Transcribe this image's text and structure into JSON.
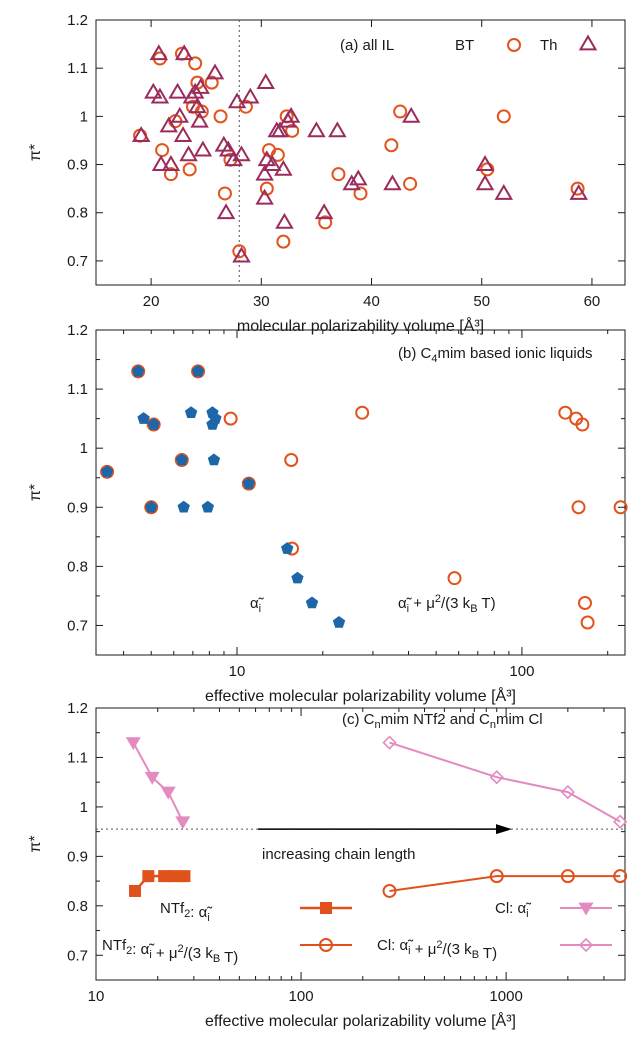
{
  "colors": {
    "orange": "#e2531d",
    "purple": "#9a2b5c",
    "blue": "#1d66a8",
    "pink": "#e38ac1",
    "nt_orange": "#e0521c",
    "axis": "#1a1a1a"
  },
  "chart_data": [
    {
      "type": "scatter",
      "panel": "a",
      "annotation": "(a) all IL",
      "xlabel": "molecular polarizability volume  [Å³]",
      "ylabel": "π*",
      "xlim": [
        15,
        63
      ],
      "ylim": [
        0.65,
        1.2
      ],
      "xscale": "linear",
      "xticks": [
        20,
        30,
        40,
        50,
        60
      ],
      "yticks": [
        0.7,
        0.8,
        0.9,
        1,
        1.1,
        1.2
      ],
      "yticklabels": [
        "0.7",
        "0.8",
        "0.9",
        "1",
        "1.1",
        "1.2"
      ],
      "vline_x": 28,
      "series": [
        {
          "name": "BT",
          "marker": "circle-open",
          "points": [
            [
              19.0,
              0.96
            ],
            [
              20.8,
              1.12
            ],
            [
              21.0,
              0.93
            ],
            [
              21.8,
              0.88
            ],
            [
              22.2,
              0.99
            ],
            [
              22.8,
              1.13
            ],
            [
              23.5,
              0.89
            ],
            [
              23.8,
              1.02
            ],
            [
              24.0,
              1.11
            ],
            [
              24.2,
              1.07
            ],
            [
              24.6,
              1.01
            ],
            [
              25.5,
              1.07
            ],
            [
              26.3,
              1.0
            ],
            [
              26.7,
              0.84
            ],
            [
              27.2,
              0.91
            ],
            [
              28.0,
              0.72
            ],
            [
              28.6,
              1.02
            ],
            [
              30.5,
              0.85
            ],
            [
              30.7,
              0.93
            ],
            [
              31.5,
              0.92
            ],
            [
              32.0,
              0.74
            ],
            [
              32.3,
              1.0
            ],
            [
              32.8,
              0.97
            ],
            [
              35.8,
              0.78
            ],
            [
              37.0,
              0.88
            ],
            [
              39.0,
              0.84
            ],
            [
              41.8,
              0.94
            ],
            [
              42.6,
              1.01
            ],
            [
              43.5,
              0.86
            ],
            [
              50.5,
              0.89
            ],
            [
              52.0,
              1.0
            ],
            [
              58.7,
              0.85
            ]
          ]
        },
        {
          "name": "Th",
          "marker": "triangle-open",
          "points": [
            [
              19.1,
              0.96
            ],
            [
              20.2,
              1.05
            ],
            [
              20.7,
              1.13
            ],
            [
              20.8,
              1.04
            ],
            [
              20.9,
              0.9
            ],
            [
              21.6,
              0.98
            ],
            [
              21.8,
              0.9
            ],
            [
              22.4,
              1.05
            ],
            [
              22.6,
              1.0
            ],
            [
              22.9,
              0.96
            ],
            [
              23.0,
              1.13
            ],
            [
              23.4,
              0.92
            ],
            [
              23.7,
              1.04
            ],
            [
              24.0,
              1.05
            ],
            [
              24.2,
              1.02
            ],
            [
              24.4,
              0.99
            ],
            [
              24.5,
              1.06
            ],
            [
              24.7,
              0.93
            ],
            [
              25.8,
              1.09
            ],
            [
              26.6,
              0.94
            ],
            [
              26.8,
              0.8
            ],
            [
              27.0,
              0.93
            ],
            [
              27.5,
              0.91
            ],
            [
              27.8,
              1.03
            ],
            [
              28.2,
              0.71
            ],
            [
              28.2,
              0.92
            ],
            [
              29.0,
              1.04
            ],
            [
              30.3,
              0.88
            ],
            [
              30.3,
              0.83
            ],
            [
              30.4,
              1.07
            ],
            [
              30.5,
              0.91
            ],
            [
              31.0,
              0.9
            ],
            [
              31.4,
              0.97
            ],
            [
              31.7,
              0.97
            ],
            [
              32.0,
              0.89
            ],
            [
              32.1,
              0.78
            ],
            [
              32.4,
              0.99
            ],
            [
              32.7,
              1.0
            ],
            [
              35.0,
              0.97
            ],
            [
              35.7,
              0.8
            ],
            [
              36.9,
              0.97
            ],
            [
              38.2,
              0.86
            ],
            [
              38.8,
              0.87
            ],
            [
              41.9,
              0.86
            ],
            [
              43.6,
              1.0
            ],
            [
              50.3,
              0.9
            ],
            [
              50.3,
              0.86
            ],
            [
              52.0,
              0.84
            ],
            [
              58.8,
              0.84
            ]
          ]
        }
      ]
    },
    {
      "type": "scatter",
      "panel": "b",
      "annotation": "(b) C4mim based ionic liquids",
      "annotation_parts": {
        "pre": "(b) C",
        "sub": "4",
        "post": "mim based ionic liquids"
      },
      "xlabel": "effective molecular polarizability volume [Å³]",
      "ylabel": "π*",
      "xlim": [
        3.2,
        230
      ],
      "ylim": [
        0.65,
        1.2
      ],
      "xscale": "log",
      "xticks": [
        10,
        100
      ],
      "xticklabels": [
        "10",
        "100"
      ],
      "yticks": [
        0.7,
        0.8,
        0.9,
        1,
        1.1,
        1.2
      ],
      "yticklabels": [
        "0.7",
        "0.8",
        "0.9",
        "1",
        "1.1",
        "1.2"
      ],
      "series": [
        {
          "name": "α̃ᵢ",
          "legend_text": "α̃ i",
          "marker": "pentagon-filled",
          "points": [
            [
              3.5,
              0.96
            ],
            [
              4.5,
              1.13
            ],
            [
              4.7,
              1.05
            ],
            [
              5.0,
              0.9
            ],
            [
              5.1,
              1.04
            ],
            [
              6.4,
              0.98
            ],
            [
              6.5,
              0.9
            ],
            [
              6.9,
              1.06
            ],
            [
              7.3,
              1.13
            ],
            [
              7.9,
              0.9
            ],
            [
              8.2,
              1.04
            ],
            [
              8.2,
              1.06
            ],
            [
              8.3,
              0.98
            ],
            [
              8.4,
              1.05
            ],
            [
              11.0,
              0.94
            ],
            [
              15.0,
              0.83
            ],
            [
              16.3,
              0.78
            ],
            [
              22.8,
              0.705
            ]
          ]
        },
        {
          "name": "α̃ᵢ + μ²/(3 k_B T)",
          "legend_text": "α̃ i + μ2/(3 kB T)",
          "marker": "circle-open",
          "points": [
            [
              3.5,
              0.96
            ],
            [
              4.5,
              1.13
            ],
            [
              5.0,
              0.9
            ],
            [
              5.1,
              1.04
            ],
            [
              6.4,
              0.98
            ],
            [
              7.3,
              1.13
            ],
            [
              9.5,
              1.05
            ],
            [
              11.0,
              0.94
            ],
            [
              15.5,
              0.98
            ],
            [
              15.6,
              0.83
            ],
            [
              27.5,
              1.06
            ],
            [
              58.0,
              0.78
            ],
            [
              142.0,
              1.06
            ],
            [
              155.0,
              1.05
            ],
            [
              158.0,
              0.9
            ],
            [
              163.0,
              1.04
            ],
            [
              170.0,
              0.705
            ],
            [
              222.0,
              0.9
            ]
          ]
        }
      ]
    },
    {
      "type": "line",
      "panel": "c",
      "annotation": "(c) CnmimNTf2 and CnmimCl",
      "annotation_parts": {
        "pre": "(c) C",
        "sub1": "n",
        "mid": "mim NTf2 and C",
        "sub2": "n",
        "post": "mim Cl"
      },
      "arrow_text": "increasing chain length",
      "hline_y": 0.955,
      "xlabel": "effective molecular polarizability volume [Å³]",
      "ylabel": "π*",
      "xlim": [
        10,
        3800
      ],
      "ylim": [
        0.65,
        1.2
      ],
      "xscale": "log",
      "xticks": [
        10,
        100,
        1000
      ],
      "xticklabels": [
        "10",
        "100",
        "1000"
      ],
      "yticks": [
        0.7,
        0.8,
        0.9,
        1,
        1.1,
        1.2
      ],
      "yticklabels": [
        "0.7",
        "0.8",
        "0.9",
        "1",
        "1.1",
        "1.2"
      ],
      "series": [
        {
          "name": "NTf2: α̃ᵢ",
          "legend_text": "NTf2: α̃ i",
          "marker": "square-filled",
          "points": [
            [
              15.5,
              0.83
            ],
            [
              18.0,
              0.86
            ],
            [
              21.5,
              0.86
            ],
            [
              24.0,
              0.86
            ],
            [
              27.0,
              0.86
            ]
          ]
        },
        {
          "name": "NTf2: α̃ᵢ + μ²/(3 k_B T)",
          "legend_text": "NTf2: α̃ i + μ2/(3 kB T)",
          "marker": "circle-open",
          "points": [
            [
              270,
              0.83
            ],
            [
              900,
              0.86
            ],
            [
              2000,
              0.86
            ],
            [
              3600,
              0.86
            ]
          ]
        },
        {
          "name": "Cl: α̃ᵢ",
          "legend_text": "Cl: α̃ i",
          "marker": "triangle-down-filled",
          "points": [
            [
              15.2,
              1.13
            ],
            [
              18.8,
              1.06
            ],
            [
              22.5,
              1.03
            ],
            [
              26.5,
              0.97
            ]
          ]
        },
        {
          "name": "Cl: α̃ᵢ + μ²/(3 k_B T)",
          "legend_text": "Cl: α̃ i + μ2/(3 kB T)",
          "marker": "diamond-open",
          "points": [
            [
              270,
              1.13
            ],
            [
              900,
              1.06
            ],
            [
              2000,
              1.03
            ],
            [
              3600,
              0.97
            ]
          ]
        }
      ]
    }
  ]
}
